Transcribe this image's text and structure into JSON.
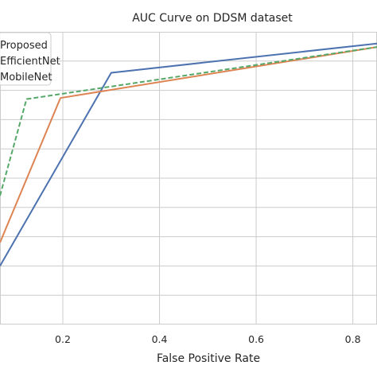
{
  "chart_data": {
    "type": "line",
    "title": "AUC Curve on DDSM dataset",
    "xlabel": "False Positive Rate",
    "ylabel": "",
    "x_ticks": [
      "0.2",
      "0.4",
      "0.6",
      "0.8"
    ],
    "x_tick_values": [
      0.2,
      0.4,
      0.6,
      0.8
    ],
    "xlim": [
      0.07,
      0.85
    ],
    "ylim": [
      0.5,
      1.0
    ],
    "grid": true,
    "legend_position": "top-left",
    "series": [
      {
        "name": "Proposed",
        "color": "#4c72b0",
        "dash": "solid",
        "x": [
          0.07,
          0.3,
          0.85
        ],
        "y": [
          0.6,
          0.93,
          0.98
        ]
      },
      {
        "name": "EfficientNet",
        "color": "#dd8452",
        "dash": "solid",
        "x": [
          0.07,
          0.195,
          0.85
        ],
        "y": [
          0.64,
          0.887,
          0.974
        ]
      },
      {
        "name": "MobileNet",
        "color": "#55a868",
        "dash": "dashed",
        "x": [
          0.07,
          0.125,
          0.85
        ],
        "y": [
          0.72,
          0.885,
          0.974
        ]
      }
    ]
  },
  "legend_entries": [
    "Proposed",
    "EfficientNet",
    "MobileNet"
  ]
}
